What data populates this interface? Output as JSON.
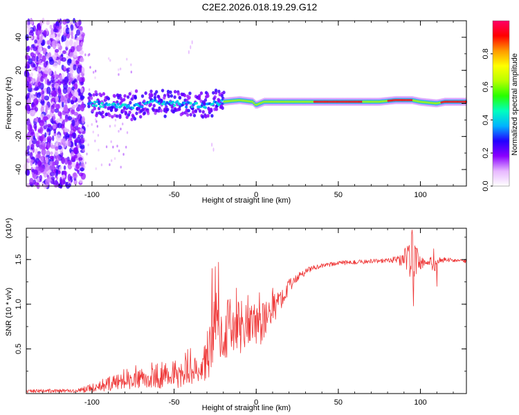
{
  "title": "C2E2.2026.018.19.29.G12",
  "chart_data": [
    {
      "type": "heatmap",
      "xlabel": "Height of straight line (km)",
      "ylabel": "Frequency (Hz)",
      "xlim": [
        -140,
        128
      ],
      "ylim": [
        -50,
        50
      ],
      "x_ticks": [
        -100,
        -50,
        0,
        50,
        100
      ],
      "x_tick_labels": [
        "-100",
        "-50",
        "0",
        "50",
        "100"
      ],
      "y_ticks": [
        -40,
        -20,
        0,
        20,
        40
      ],
      "y_tick_labels": [
        "-40",
        "-20",
        "0",
        "20",
        "40"
      ],
      "colorbar": {
        "label": "Normalized spectral amplitude",
        "range": [
          0,
          1
        ],
        "ticks": [
          0,
          0.2,
          0.4,
          0.6,
          0.8
        ],
        "tick_labels": [
          "0.0",
          "0.2",
          "0.4",
          "0.6",
          "0.8"
        ],
        "colormap": [
          "#ffffff",
          "#e7b7ff",
          "#8a00ff",
          "#2200ff",
          "#00b3ff",
          "#00ffbf",
          "#27ff00",
          "#b8ff00",
          "#ffff00",
          "#ff9900",
          "#ff0000",
          "#ff0066"
        ]
      },
      "features": {
        "line_freq_by_height": [
          [
            -100,
            0
          ],
          [
            -90,
            -1
          ],
          [
            -80,
            -2
          ],
          [
            -70,
            -1
          ],
          [
            -60,
            1
          ],
          [
            -50,
            0
          ],
          [
            -40,
            -1
          ],
          [
            -30,
            -1
          ],
          [
            -20,
            1
          ],
          [
            -10,
            2
          ],
          [
            -2,
            1
          ],
          [
            0,
            -1
          ],
          [
            5,
            1
          ],
          [
            10,
            1
          ],
          [
            20,
            1
          ],
          [
            40,
            1
          ],
          [
            60,
            1
          ],
          [
            75,
            1
          ],
          [
            85,
            2
          ],
          [
            95,
            2
          ],
          [
            100,
            1
          ],
          [
            110,
            0
          ],
          [
            115,
            1
          ],
          [
            128,
            1
          ]
        ],
        "noise_band_end_height": -105,
        "bright_segments": [
          [
            35,
            65
          ],
          [
            80,
            96
          ],
          [
            113,
            128
          ]
        ]
      }
    },
    {
      "type": "line",
      "xlabel": "Height of straight line (km)",
      "ylabel": "SNR (10 * v/v)",
      "y_scale_label": "(x10⁴)",
      "xlim": [
        -140,
        128
      ],
      "ylim": [
        0,
        1.85
      ],
      "x_ticks": [
        -100,
        -50,
        0,
        50,
        100
      ],
      "x_tick_labels": [
        "-100",
        "-50",
        "0",
        "50",
        "100"
      ],
      "y_ticks": [
        0.5,
        1.0,
        1.5
      ],
      "y_tick_labels": [
        "0.5",
        "1.0",
        "1.5"
      ],
      "line_color": "#ee3333",
      "envelope": [
        [
          -140,
          0.03,
          0.02
        ],
        [
          -110,
          0.03,
          0.02
        ],
        [
          -100,
          0.06,
          0.05
        ],
        [
          -90,
          0.12,
          0.09
        ],
        [
          -80,
          0.18,
          0.14
        ],
        [
          -70,
          0.2,
          0.15
        ],
        [
          -60,
          0.22,
          0.17
        ],
        [
          -50,
          0.25,
          0.19
        ],
        [
          -40,
          0.29,
          0.22
        ],
        [
          -32,
          0.3,
          0.2
        ],
        [
          -28,
          0.55,
          0.35
        ],
        [
          -25,
          0.8,
          0.38
        ],
        [
          -20,
          0.72,
          0.35
        ],
        [
          -10,
          0.75,
          0.33
        ],
        [
          -5,
          0.78,
          0.3
        ],
        [
          0,
          0.72,
          0.28
        ],
        [
          5,
          0.82,
          0.22
        ],
        [
          10,
          0.95,
          0.18
        ],
        [
          15,
          1.05,
          0.12
        ],
        [
          20,
          1.2,
          0.08
        ],
        [
          25,
          1.3,
          0.05
        ],
        [
          30,
          1.36,
          0.04
        ],
        [
          35,
          1.41,
          0.03
        ],
        [
          40,
          1.43,
          0.025
        ],
        [
          50,
          1.46,
          0.025
        ],
        [
          60,
          1.47,
          0.025
        ],
        [
          70,
          1.48,
          0.025
        ],
        [
          80,
          1.49,
          0.025
        ],
        [
          85,
          1.5,
          0.04
        ],
        [
          90,
          1.5,
          0.1
        ],
        [
          93,
          1.55,
          0.2
        ],
        [
          95,
          1.45,
          0.35
        ],
        [
          97,
          1.5,
          0.22
        ],
        [
          100,
          1.47,
          0.08
        ],
        [
          103,
          1.45,
          0.04
        ],
        [
          106,
          1.48,
          0.06
        ],
        [
          108,
          1.42,
          0.12
        ],
        [
          110,
          1.49,
          0.05
        ],
        [
          115,
          1.5,
          0.025
        ],
        [
          128,
          1.48,
          0.02
        ]
      ],
      "spikes": [
        [
          -23,
          1.47
        ],
        [
          -25,
          1.42
        ],
        [
          -27,
          1.4
        ],
        [
          -17,
          1.05
        ],
        [
          -12,
          1.18
        ],
        [
          -5,
          1.1
        ],
        [
          2,
          1.13
        ],
        [
          10,
          1.18
        ],
        [
          95,
          1.83
        ],
        [
          95.8,
          0.98
        ],
        [
          108,
          1.62
        ],
        [
          110,
          1.2
        ]
      ]
    }
  ]
}
